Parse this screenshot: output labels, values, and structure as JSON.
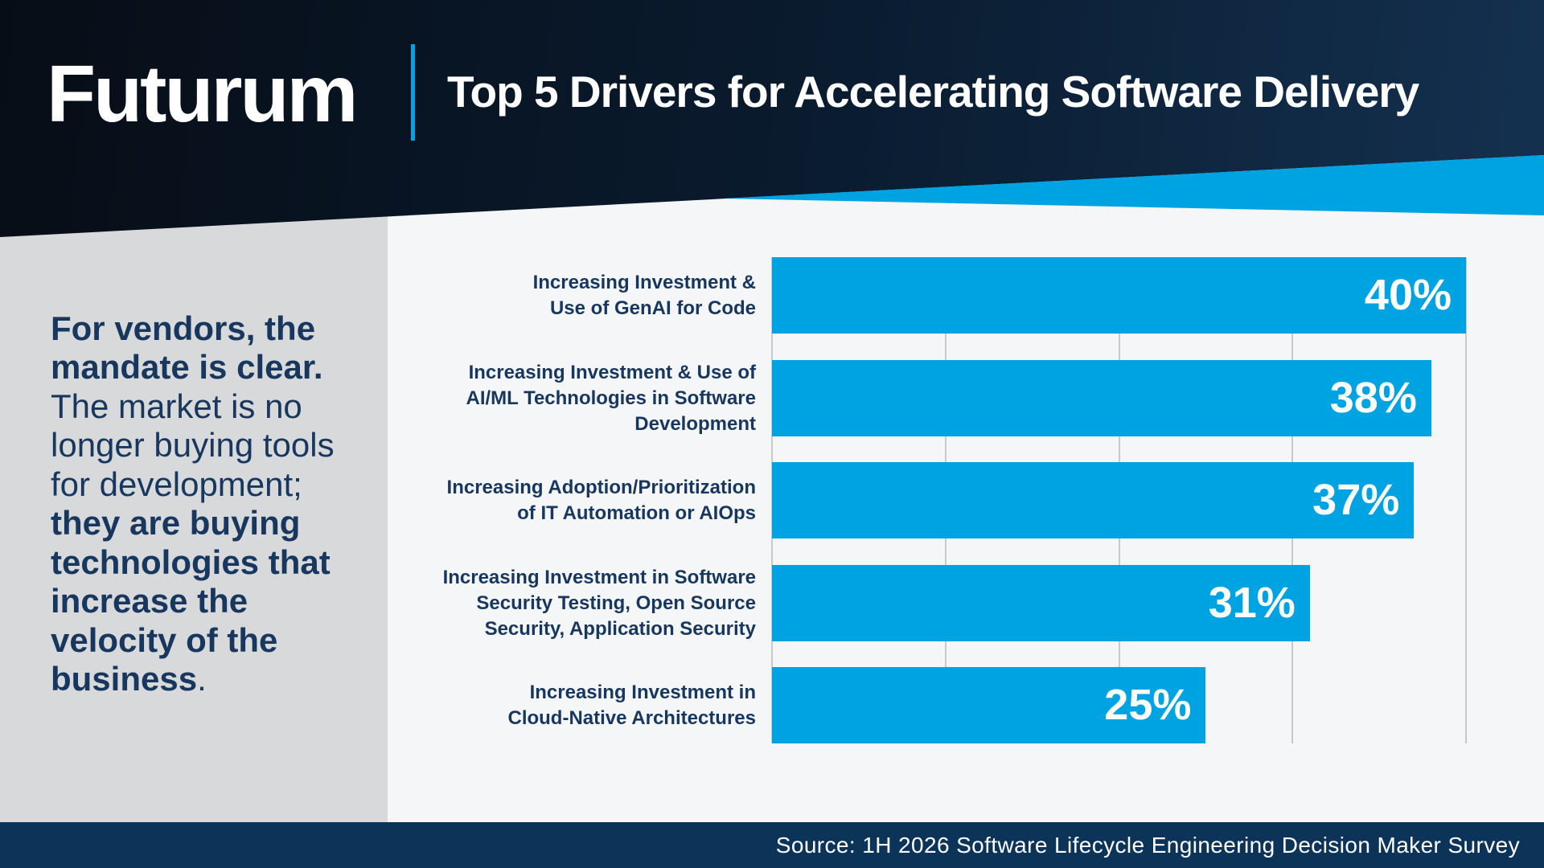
{
  "header": {
    "logo": "Futurum",
    "title": "Top 5 Drivers for Accelerating Software Delivery"
  },
  "sidebar": {
    "lead_bold": "For vendors, the\nmandate is clear.\n",
    "body_regular": "The market is no\nlonger buying tools\nfor development;\n",
    "emphasis_bold": "they are buying\ntechnologies that\nincrease the\nvelocity of the\nbusiness",
    "period": "."
  },
  "footer": {
    "source": "Source: 1H 2026 Software Lifecycle Engineering Decision Maker Survey"
  },
  "colors": {
    "bar_blue": "#00a3e2",
    "accent_blue": "#00a3e2",
    "navy_text": "#17375e",
    "footer_navy": "#0c3459",
    "sidebar_gray": "#d8d9da",
    "chart_background": "#f5f6f7",
    "gridline_gray": "#c6c8ca"
  },
  "chart_data": {
    "type": "bar",
    "orientation": "horizontal",
    "title": "Top 5 Drivers for Accelerating Software Delivery",
    "categories": [
      "Increasing Investment &\nUse of GenAI for Code",
      "Increasing Investment & Use of\nAI/ML Technologies in Software\nDevelopment",
      "Increasing Adoption/Prioritization\nof IT Automation or AIOps",
      "Increasing Investment in Software\nSecurity Testing, Open Source\nSecurity, Application Security",
      "Increasing Investment in\nCloud-Native Architectures"
    ],
    "values": [
      40,
      38,
      37,
      31,
      25
    ],
    "value_labels": [
      "40%",
      "38%",
      "37%",
      "31%",
      "25%"
    ],
    "xlabel": "",
    "ylabel": "",
    "xlim": [
      0,
      40
    ],
    "gridline_step": 10,
    "grid": true,
    "legend": false,
    "value_label_position": "inside-end"
  }
}
